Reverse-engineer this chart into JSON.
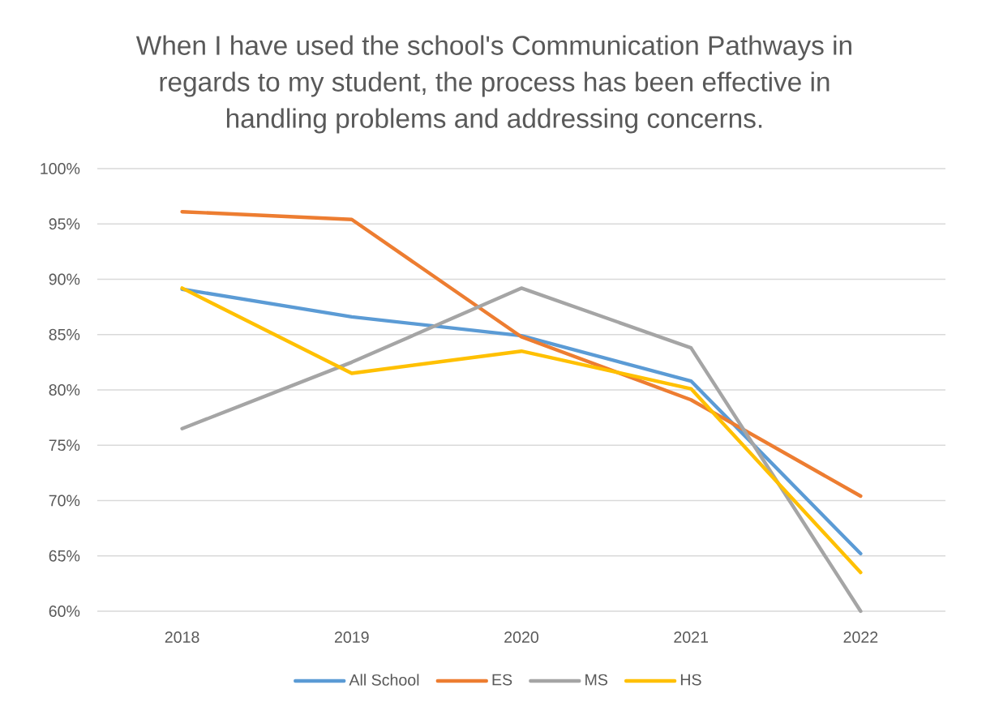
{
  "chart_data": {
    "type": "line",
    "title": "When I have used the school's Communication Pathways in regards to my student, the process has been effective in handling problems and addressing concerns.",
    "categories": [
      "2018",
      "2019",
      "2020",
      "2021",
      "2022"
    ],
    "series": [
      {
        "name": "All School",
        "color": "#5b9bd5",
        "values": [
          89.1,
          86.6,
          84.9,
          80.8,
          65.2
        ]
      },
      {
        "name": "ES",
        "color": "#ed7d31",
        "values": [
          96.1,
          95.4,
          84.8,
          79.1,
          70.4
        ]
      },
      {
        "name": "MS",
        "color": "#a5a5a5",
        "values": [
          76.5,
          82.5,
          89.2,
          83.8,
          60.0
        ]
      },
      {
        "name": "HS",
        "color": "#ffc000",
        "values": [
          89.2,
          81.5,
          83.5,
          80.1,
          63.5
        ]
      }
    ],
    "ylim": [
      60,
      100
    ],
    "yticks": [
      {
        "value": 60,
        "label": "60%"
      },
      {
        "value": 65,
        "label": "65%"
      },
      {
        "value": 70,
        "label": "70%"
      },
      {
        "value": 75,
        "label": "75%"
      },
      {
        "value": 80,
        "label": "80%"
      },
      {
        "value": 85,
        "label": "85%"
      },
      {
        "value": 90,
        "label": "90%"
      },
      {
        "value": 95,
        "label": "95%"
      },
      {
        "value": 100,
        "label": "100%"
      }
    ],
    "grid": "y",
    "legend": "bottom",
    "marker": "none",
    "line_style": "solid"
  }
}
